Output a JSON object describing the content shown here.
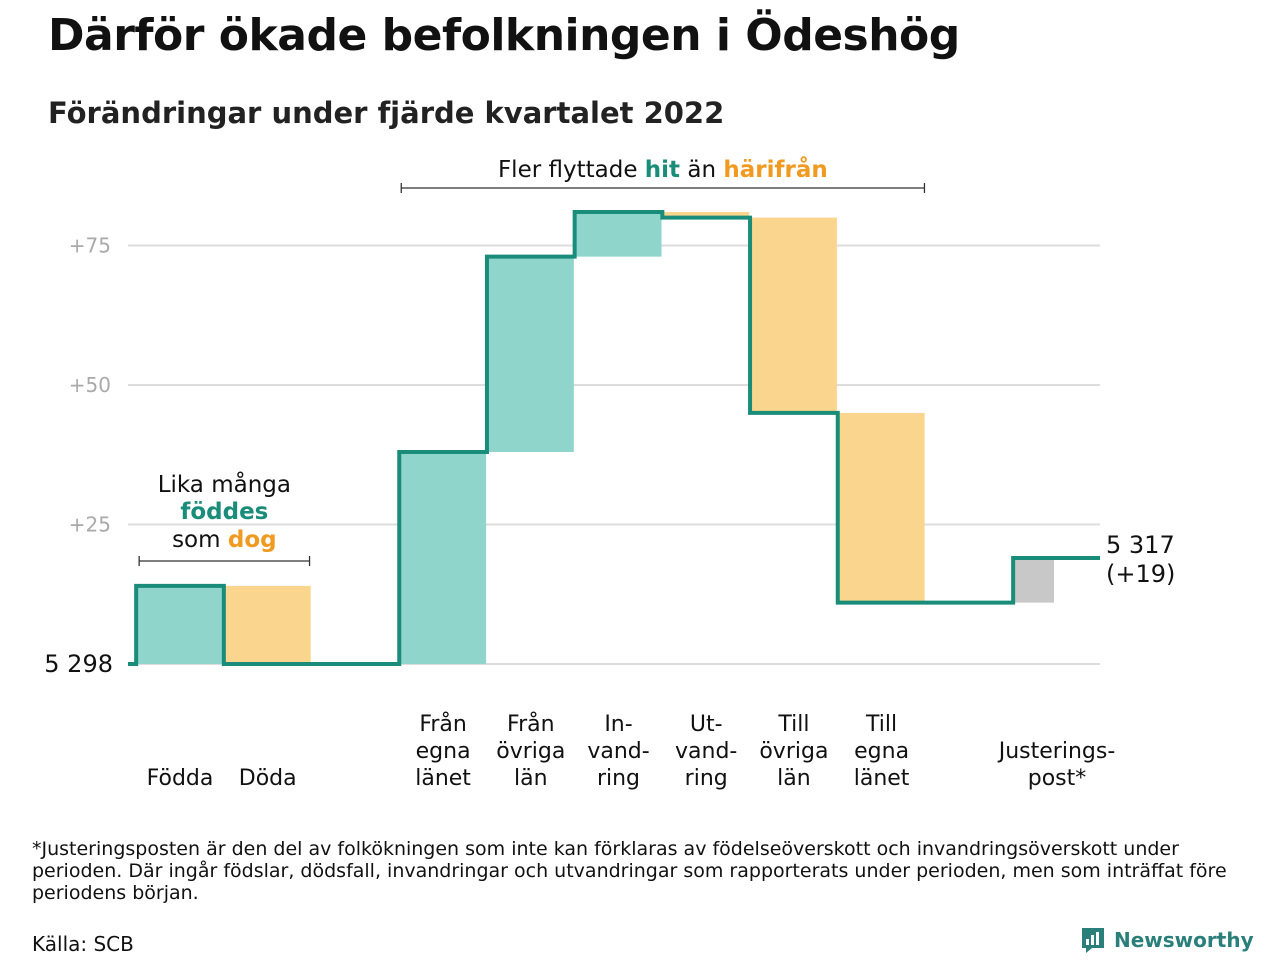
{
  "title": "Därför ökade befolkningen i Ödeshög",
  "subtitle": "Förändringar under fjärde kvartalet 2022",
  "colors": {
    "in": "#8fd5cb",
    "out": "#fad58d",
    "adjust": "#c8c8c8",
    "line": "#1a8c7a",
    "accent_teal": "#1a8c7a",
    "accent_orange": "#f19a21",
    "grid": "#dddddd",
    "tick": "#aaaaaa"
  },
  "chart_data": {
    "type": "waterfall",
    "start_label": "5 298",
    "start_value": 0,
    "end_label": "5 317",
    "end_change_label": "(+19)",
    "y_ticks": [
      {
        "value": 25,
        "label": "+25"
      },
      {
        "value": 50,
        "label": "+50"
      },
      {
        "value": 75,
        "label": "+75"
      }
    ],
    "grid": true,
    "steps": [
      {
        "label_lines": [
          "Födda"
        ],
        "from": 0,
        "to": 14,
        "kind": "in"
      },
      {
        "label_lines": [
          "Döda"
        ],
        "from": 14,
        "to": 0,
        "kind": "out"
      },
      {
        "label_lines": [
          ""
        ],
        "from": 0,
        "to": 0,
        "kind": "none"
      },
      {
        "label_lines": [
          "Från",
          "egna",
          "länet"
        ],
        "from": 0,
        "to": 38,
        "kind": "in"
      },
      {
        "label_lines": [
          "Från",
          "övriga",
          "län"
        ],
        "from": 38,
        "to": 73,
        "kind": "in"
      },
      {
        "label_lines": [
          "In-",
          "vand-",
          "ring"
        ],
        "from": 73,
        "to": 81,
        "kind": "in"
      },
      {
        "label_lines": [
          "Ut-",
          "vand-",
          "ring"
        ],
        "from": 81,
        "to": 80,
        "kind": "out"
      },
      {
        "label_lines": [
          "Till",
          "övriga",
          "län"
        ],
        "from": 80,
        "to": 45,
        "kind": "out"
      },
      {
        "label_lines": [
          "Till",
          "egna",
          "länet"
        ],
        "from": 45,
        "to": 11,
        "kind": "out"
      },
      {
        "label_lines": [
          ""
        ],
        "from": 11,
        "to": 11,
        "kind": "none"
      },
      {
        "label_lines": [
          "Justerings-",
          "post*"
        ],
        "from": 11,
        "to": 19,
        "kind": "adjust"
      }
    ],
    "annotations": {
      "births": {
        "line1": "Lika många",
        "line2": "föddes",
        "line3a": "som ",
        "line3b": "dog"
      },
      "migration": {
        "a": "Fler flyttade ",
        "b": "hit",
        "c": " än ",
        "d": "härifrån"
      }
    }
  },
  "footnote": "*Justeringsposten är den del av folkökningen som inte kan förklaras av födelseöverskott och invandringsöverskott under perioden. Där ingår födslar, dödsfall, invandringar och utvandringar som rapporterats under perioden, men som inträffat före periodens början.",
  "source": "Källa: SCB",
  "brand": {
    "name": "Newsworthy",
    "icon": "newsworthy-logo-icon"
  }
}
